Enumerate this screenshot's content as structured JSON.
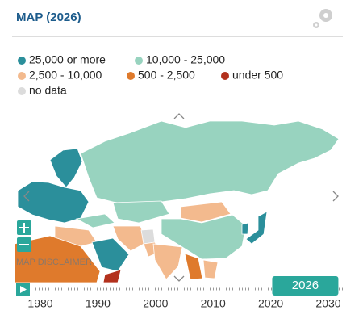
{
  "header": {
    "title": "MAP (2026)"
  },
  "legend": [
    {
      "label": "25,000 or more",
      "color": "#2b8f9b"
    },
    {
      "label": "10,000 - 25,000",
      "color": "#98d3bf"
    },
    {
      "label": "2,500 - 10,000",
      "color": "#f3ba8e"
    },
    {
      "label": "500 - 2,500",
      "color": "#df7a2c"
    },
    {
      "label": "under 500",
      "color": "#b3311d"
    },
    {
      "label": "no data",
      "color": "#dcdcdc"
    }
  ],
  "map": {
    "disclaimer": "MAP DISCLAIMER"
  },
  "timeline": {
    "years": [
      1980,
      1990,
      2000,
      2010,
      2020,
      2030
    ],
    "selected": 2026
  }
}
